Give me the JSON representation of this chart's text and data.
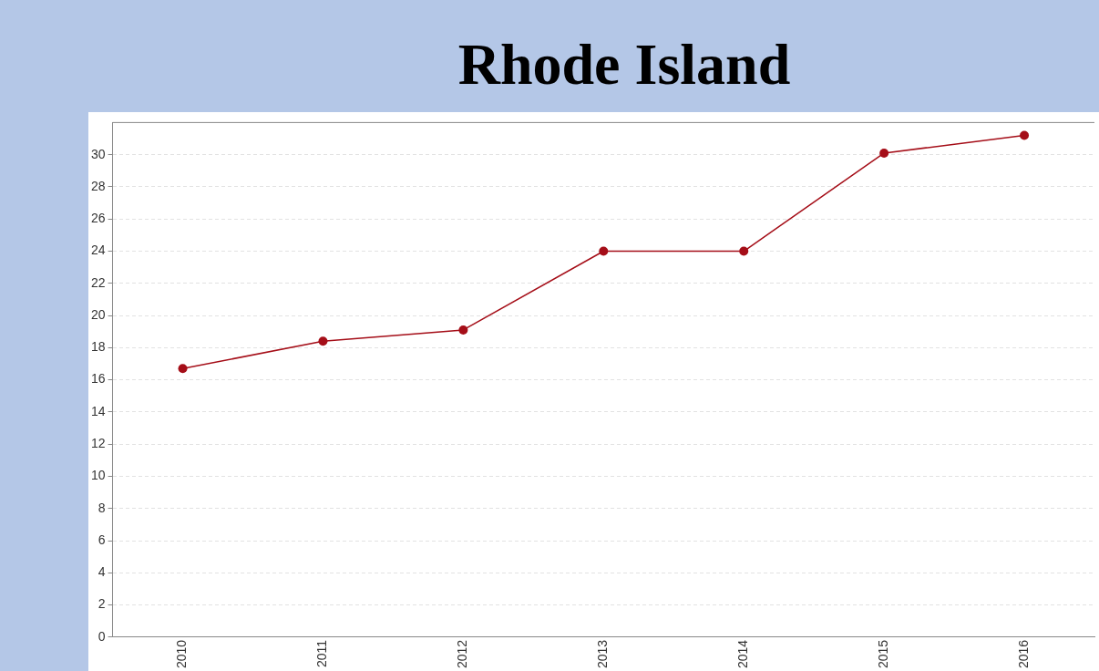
{
  "chart_data": {
    "type": "line",
    "title": "Rhode Island",
    "categories": [
      "2010",
      "2011",
      "2012",
      "2013",
      "2014",
      "2015",
      "2016"
    ],
    "series": [
      {
        "color": "#a50e18",
        "values": [
          16.7,
          18.4,
          19.1,
          24,
          24,
          30.1,
          31.2
        ]
      }
    ],
    "ylim": [
      0,
      32
    ],
    "yticks": [
      0,
      2,
      4,
      6,
      8,
      10,
      12,
      14,
      16,
      18,
      20,
      22,
      24,
      26,
      28,
      30
    ],
    "grid": "y",
    "legend": false,
    "marker": "circle",
    "line_style": "solid"
  }
}
